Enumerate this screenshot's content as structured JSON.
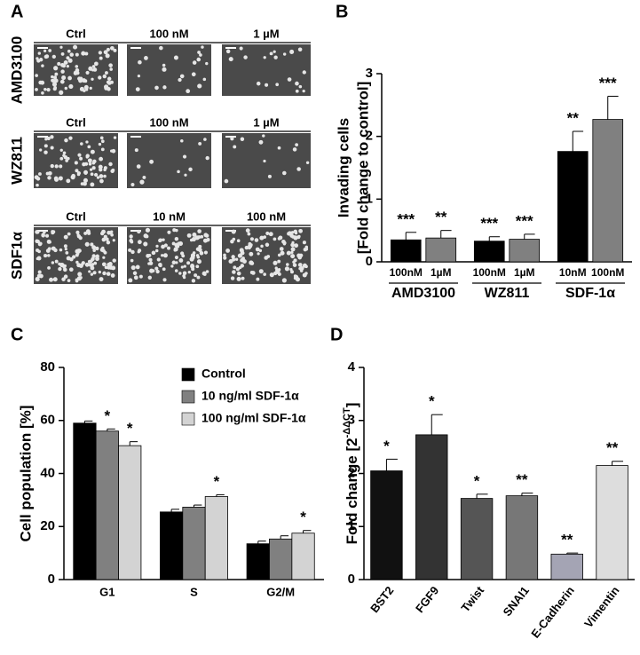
{
  "micrographs": {
    "panel": "A",
    "rows": [
      {
        "label": "AMD3100",
        "columns": [
          "Ctrl",
          "100 nM",
          "1 µM"
        ]
      },
      {
        "label": "WZ811",
        "columns": [
          "Ctrl",
          "100 nM",
          "1 µM"
        ]
      },
      {
        "label": "SDF1α",
        "columns": [
          "Ctrl",
          "10 nM",
          "100 nM"
        ]
      }
    ]
  },
  "chart_data": [
    {
      "type": "bar",
      "panel": "B",
      "ylabel": [
        "Invading cells",
        "[Fold change to control]"
      ],
      "groups": [
        "AMD3100",
        "WZ811",
        "SDF-1α"
      ],
      "categories": [
        "100nM",
        "1µM",
        "100nM",
        "1µM",
        "10nM",
        "100nM"
      ],
      "values": [
        0.35,
        0.38,
        0.33,
        0.36,
        1.76,
        2.27
      ],
      "errors": [
        0.12,
        0.12,
        0.07,
        0.08,
        0.32,
        0.37
      ],
      "annotations": [
        "***",
        "**",
        "***",
        "***",
        "**",
        "***"
      ],
      "colors": [
        "#000000",
        "#808080",
        "#000000",
        "#808080",
        "#000000",
        "#808080"
      ],
      "ylim": [
        0,
        3
      ],
      "yticks": [
        0,
        1,
        2,
        3
      ]
    },
    {
      "type": "grouped_bar",
      "panel": "C",
      "ylabel": [
        "Cell population [%]"
      ],
      "categories": [
        "G1",
        "S",
        "G2/M"
      ],
      "series": [
        {
          "name": "Control",
          "color": "#000000",
          "values": [
            59,
            25.5,
            13.5
          ],
          "errors": [
            0.8,
            1,
            1
          ],
          "annotations": [
            null,
            null,
            null
          ]
        },
        {
          "name": "10 ng/ml SDF-1α",
          "color": "#808080",
          "values": [
            56,
            27.3,
            15.3
          ],
          "errors": [
            0.8,
            0.8,
            1.2
          ],
          "annotations": [
            "*",
            null,
            null
          ]
        },
        {
          "name": "100 ng/ml SDF-1α",
          "color": "#d3d3d3",
          "values": [
            50.5,
            31.3,
            17.5
          ],
          "errors": [
            1.5,
            0.7,
            1
          ],
          "annotations": [
            "*",
            "*",
            "*"
          ]
        }
      ],
      "legend": "top-right",
      "ylim": [
        0,
        80
      ],
      "yticks": [
        0,
        20,
        40,
        60,
        80
      ]
    },
    {
      "type": "bar",
      "panel": "D",
      "ylabel": [
        "Fold  change  [2"
      ],
      "ylabel_superscript": "-ΔΔCT",
      "ylabel_suffix": "]",
      "categories": [
        "BST2",
        "FGF9",
        "Twist",
        "SNAI1",
        "E-Cadherin",
        "Vimentin"
      ],
      "values": [
        2.05,
        2.73,
        1.53,
        1.58,
        0.48,
        2.15
      ],
      "errors": [
        0.22,
        0.38,
        0.08,
        0.05,
        0.02,
        0.08
      ],
      "annotations": [
        "*",
        "*",
        "*",
        "**",
        "**",
        "**"
      ],
      "colors": [
        "#111111",
        "#333333",
        "#555555",
        "#777777",
        "#a4a4b4",
        "#dddddd"
      ],
      "ylim": [
        0,
        4
      ],
      "yticks": [
        0,
        1,
        2,
        3,
        4
      ]
    }
  ]
}
